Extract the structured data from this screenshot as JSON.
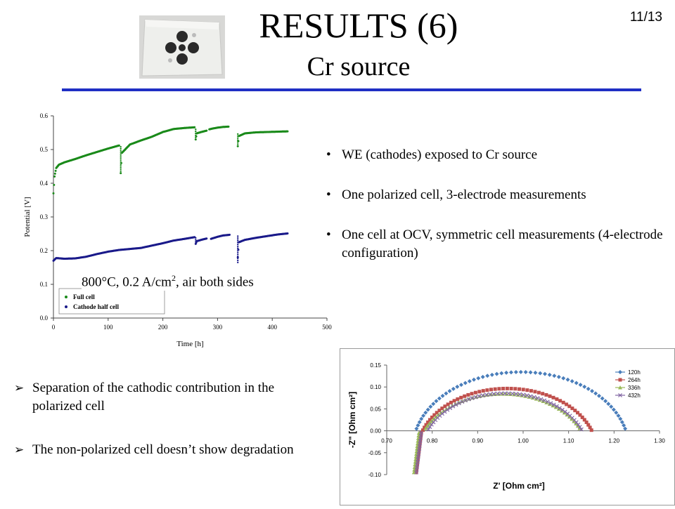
{
  "header": {
    "title": "RESULTS (6)",
    "subtitle": "Cr source",
    "page_number": "11/13",
    "rule_color": "#1f2fc4"
  },
  "bullets": [
    "WE (cathodes) exposed to Cr source",
    "One polarized cell, 3-electrode measurements",
    "One cell at OCV, symmetric cell measurements (4-electrode configuration)"
  ],
  "condition": {
    "prefix": "800°C, 0.2 A/cm",
    "sup": "2",
    "suffix": ", air both sides"
  },
  "conclusions": [
    "Separation of the cathodic contribution in the polarized cell",
    "The non-polarized cell doesn’t show degradation"
  ],
  "chart_data": [
    {
      "type": "scatter",
      "xlabel": "Time [h]",
      "ylabel": "Potential [V]",
      "xlim": [
        0,
        500
      ],
      "ylim": [
        0.0,
        0.6
      ],
      "x_ticks": [
        "0",
        "100",
        "200",
        "300",
        "400",
        "500"
      ],
      "y_ticks": [
        "0.0",
        "0.1",
        "0.2",
        "0.3",
        "0.4",
        "0.5",
        "0.6"
      ],
      "grid": false,
      "legend_position": "bottom-left",
      "series": [
        {
          "name": "Full cell",
          "color": "#1a8a1a",
          "segments": [
            {
              "x": [
                0,
                2,
                5,
                10,
                20,
                40,
                60,
                80,
                100,
                120
              ],
              "y": [
                0.37,
                0.42,
                0.445,
                0.455,
                0.462,
                0.472,
                0.483,
                0.493,
                0.503,
                0.512
              ]
            },
            {
              "x": [
                123,
                125,
                140,
                160,
                180,
                200,
                220,
                240,
                258
              ],
              "y": [
                0.43,
                0.49,
                0.515,
                0.527,
                0.538,
                0.552,
                0.561,
                0.564,
                0.566
              ]
            },
            {
              "x": [
                260,
                262,
                270,
                280
              ],
              "y": [
                0.53,
                0.548,
                0.552,
                0.556
              ]
            },
            {
              "x": [
                285,
                290,
                300,
                310,
                320
              ],
              "y": [
                0.56,
                0.562,
                0.565,
                0.567,
                0.568
              ]
            },
            {
              "x": [
                337,
                339,
                350,
                370,
                390,
                410,
                428
              ],
              "y": [
                0.51,
                0.54,
                0.548,
                0.551,
                0.552,
                0.553,
                0.554
              ]
            }
          ],
          "drops": [
            [
              123,
              0.43,
              0.51
            ],
            [
              260,
              0.53,
              0.565
            ],
            [
              337,
              0.51,
              0.55
            ]
          ]
        },
        {
          "name": "Cathode half cell",
          "color": "#1a1a8a",
          "segments": [
            {
              "x": [
                0,
                5,
                20,
                40,
                60,
                80,
                100,
                120,
                140,
                160,
                180,
                200,
                220,
                240,
                258
              ],
              "y": [
                0.17,
                0.178,
                0.176,
                0.177,
                0.182,
                0.19,
                0.197,
                0.202,
                0.205,
                0.208,
                0.215,
                0.222,
                0.23,
                0.235,
                0.24
              ]
            },
            {
              "x": [
                260,
                262,
                270,
                280
              ],
              "y": [
                0.22,
                0.228,
                0.232,
                0.236
              ]
            },
            {
              "x": [
                288,
                300,
                310,
                322
              ],
              "y": [
                0.235,
                0.241,
                0.245,
                0.247
              ]
            },
            {
              "x": [
                337,
                339,
                350,
                370,
                390,
                410,
                428
              ],
              "y": [
                0.18,
                0.225,
                0.232,
                0.238,
                0.243,
                0.248,
                0.251
              ]
            }
          ],
          "drops": [
            [
              260,
              0.22,
              0.24
            ],
            [
              337,
              0.165,
              0.245
            ]
          ]
        }
      ]
    },
    {
      "type": "scatter",
      "xlabel": "Z' [Ohm cm²]",
      "ylabel": "-Z\" [Ohm cm²]",
      "xlim": [
        0.7,
        1.3
      ],
      "ylim": [
        -0.1,
        0.15
      ],
      "x_ticks": [
        "0.70",
        "0.80",
        "0.90",
        "1.00",
        "1.10",
        "1.20",
        "1.30"
      ],
      "y_ticks": [
        "-0.10",
        "-0.05",
        "0.00",
        "0.05",
        "0.10",
        "0.15"
      ],
      "grid": false,
      "legend_position": "top-right",
      "series": [
        {
          "name": "120h",
          "color": "#4a7ebb",
          "marker": "diamond",
          "center": 0.995,
          "radius": 0.238,
          "v_offset": -0.042,
          "z0": 0.765
        },
        {
          "name": "264h",
          "color": "#c0504d",
          "marker": "square",
          "center": 0.965,
          "radius": 0.198,
          "v_offset": -0.05,
          "z0": 0.765
        },
        {
          "name": "336h",
          "color": "#9bbb59",
          "marker": "triangle",
          "center": 0.955,
          "radius": 0.188,
          "v_offset": -0.055,
          "z0": 0.76
        },
        {
          "name": "432h",
          "color": "#8064a2",
          "marker": "x",
          "center": 0.96,
          "radius": 0.183,
          "v_offset": -0.05,
          "z0": 0.765
        }
      ]
    }
  ]
}
